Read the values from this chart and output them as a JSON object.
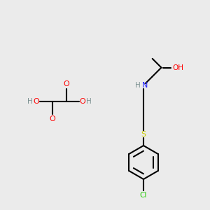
{
  "bg_color": "#ebebeb",
  "atom_colors": {
    "C": "#000000",
    "H": "#7a9090",
    "O": "#ff0000",
    "N": "#1a1aff",
    "S": "#cccc00",
    "Cl": "#22cc00"
  },
  "bond_color": "#000000",
  "bond_width": 1.5
}
